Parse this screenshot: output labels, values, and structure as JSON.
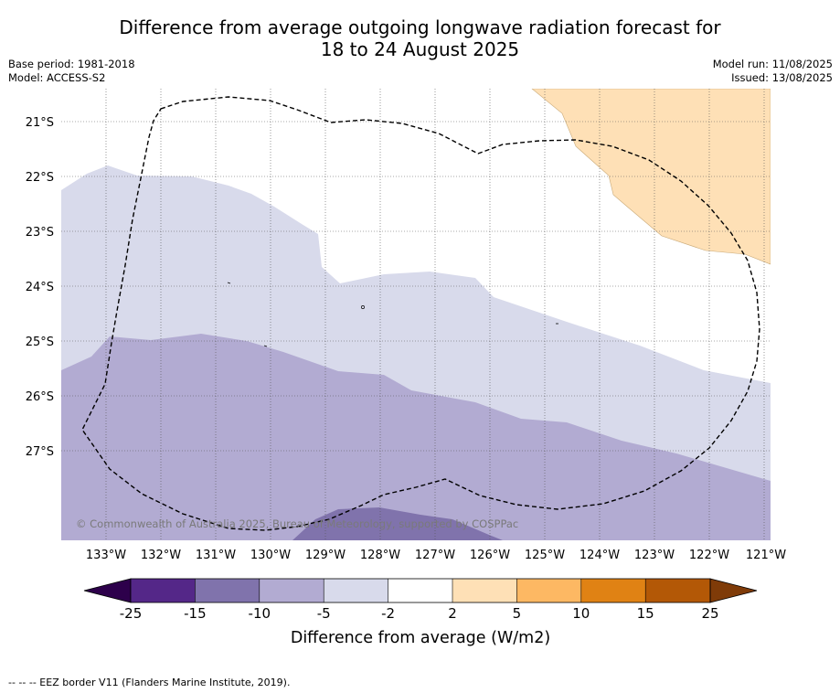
{
  "title": {
    "line1": "Difference from average outgoing longwave radiation forecast for",
    "line2": "18 to 24 August 2025"
  },
  "meta": {
    "base_period": "Base period: 1981-2018",
    "model": "Model: ACCESS-S2",
    "model_run": "Model run: 11/08/2025",
    "issued": "Issued: 13/08/2025"
  },
  "map": {
    "lon_labels": [
      "133°W",
      "132°W",
      "131°W",
      "130°W",
      "129°W",
      "128°W",
      "127°W",
      "126°W",
      "125°W",
      "124°W",
      "123°W",
      "122°W",
      "121°W"
    ],
    "lat_labels": [
      "21°S",
      "22°S",
      "23°S",
      "24°S",
      "25°S",
      "26°S",
      "27°S"
    ],
    "copyright": "© Commonwealth of Australia 2025, Bureau of Meteorology, supported by COSPPac",
    "eez_border": "EEZ border",
    "colors": {
      "lt_-25": "#2d004b",
      "-25_-15": "#542788",
      "-15_-10": "#8073ac",
      "-10_-5": "#b2abd2",
      "-5_-2": "#d8daeb",
      "-2_2": "#ffffff",
      "2_5": "#fee0b6",
      "5_10": "#fdb863",
      "10_15": "#e08214",
      "15_25": "#b35806",
      "gt_25": "#7f3b08"
    }
  },
  "colorbar": {
    "ticks": [
      "-25",
      "-15",
      "-10",
      "-5",
      "-2",
      "2",
      "5",
      "10",
      "15",
      "25"
    ],
    "label": "Difference from average (W/m2)"
  },
  "footnote": "--  --  -- EEZ border V11 (Flanders Marine Institute, 2019)."
}
